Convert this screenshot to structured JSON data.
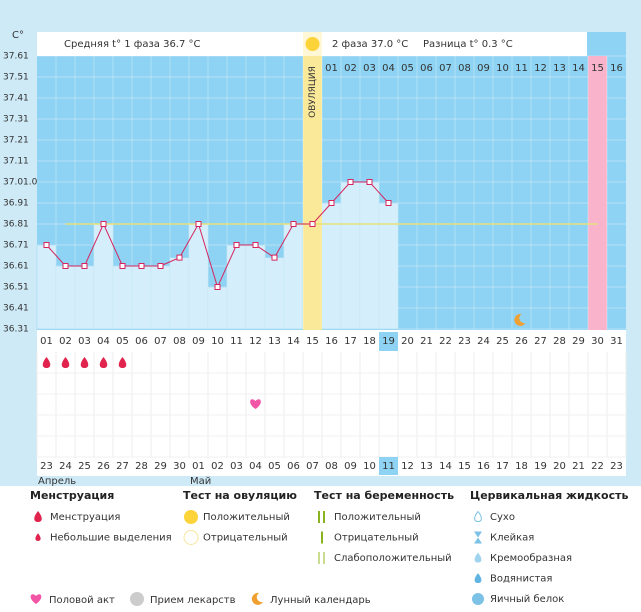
{
  "chart_data": {
    "type": "line",
    "axis_label": "C°",
    "header": {
      "phase1": "Средняя t° 1 фаза 36.7 °C",
      "ovulation": "ОВУЛЯЦИЯ",
      "phase2": "2 фаза 37.0 °C",
      "difference": "Разница t° 0.3 °C"
    },
    "categories": [
      "01",
      "02",
      "03",
      "04",
      "05",
      "06",
      "07",
      "08",
      "09",
      "10",
      "11",
      "12",
      "13",
      "14",
      "15",
      "16",
      "17",
      "18",
      "19",
      "20",
      "21",
      "22",
      "23",
      "24",
      "25",
      "26",
      "27",
      "28",
      "29",
      "30",
      "31"
    ],
    "values": [
      36.7,
      36.6,
      36.6,
      36.8,
      36.6,
      36.6,
      36.6,
      36.64,
      36.8,
      36.5,
      36.7,
      36.7,
      36.64,
      36.8,
      36.8,
      36.9,
      37.0,
      37.0,
      36.9,
      null,
      null,
      null,
      null,
      null,
      null,
      null,
      null,
      null,
      null,
      null,
      null
    ],
    "line_color": "#d6245e",
    "coverline": 36.8,
    "ylim": [
      36.3,
      37.6
    ],
    "yticks": [
      {
        "value": 37.6,
        "label": "37.61"
      },
      {
        "value": 37.5,
        "label": "37.51"
      },
      {
        "value": 37.4,
        "label": "37.41"
      },
      {
        "value": 37.3,
        "label": "37.31"
      },
      {
        "value": 37.2,
        "label": "37.21"
      },
      {
        "value": 37.1,
        "label": "37.11"
      },
      {
        "value": 37.0,
        "label": "37.01.0"
      },
      {
        "value": 36.9,
        "label": "36.91"
      },
      {
        "value": 36.8,
        "label": "36.81"
      },
      {
        "value": 36.7,
        "label": "36.71"
      },
      {
        "value": 36.6,
        "label": "36.61"
      },
      {
        "value": 36.5,
        "label": "36.51"
      },
      {
        "value": 36.4,
        "label": "36.41"
      },
      {
        "value": 36.3,
        "label": "36.31"
      }
    ],
    "grid": true,
    "phase2_days": [
      "01",
      "02",
      "03",
      "04",
      "05",
      "06",
      "07",
      "08",
      "09",
      "10",
      "11",
      "12",
      "13",
      "14",
      "15",
      "16"
    ],
    "ovulation_day": "15",
    "period_day": "30",
    "today": "19",
    "moon_day": "26",
    "menstruation_days": [
      "01",
      "02",
      "03",
      "04",
      "05"
    ],
    "intercourse_days": [
      "12"
    ],
    "dates": [
      "23",
      "24",
      "25",
      "26",
      "27",
      "28",
      "29",
      "30",
      "01",
      "02",
      "03",
      "04",
      "05",
      "06",
      "07",
      "08",
      "09",
      "10",
      "11",
      "12",
      "13",
      "14",
      "15",
      "16",
      "17",
      "18",
      "19",
      "20",
      "21",
      "22",
      "23"
    ],
    "weekend": [
      false,
      true,
      true,
      true,
      true,
      false,
      false,
      false,
      true,
      true,
      false,
      false,
      false,
      false,
      false,
      true,
      true,
      false,
      false,
      false,
      false,
      false,
      true,
      true,
      false,
      false,
      false,
      false,
      false,
      true,
      true
    ],
    "months": [
      {
        "label": "Апрель",
        "day": "23"
      },
      {
        "label": "Май",
        "day": "01"
      }
    ]
  },
  "legend": {
    "sections": [
      {
        "title": "Менструация",
        "items": [
          "Менструация",
          "Небольшие выделения"
        ]
      },
      {
        "title": "Тест на овуляцию",
        "items": [
          "Положительный",
          "Отрицательный"
        ]
      },
      {
        "title": "Тест на беременность",
        "items": [
          "Положительный",
          "Отрицательный",
          "Слабоположительный"
        ]
      },
      {
        "title": "Цервикальная жидкость",
        "items": [
          "Сухо",
          "Клейкая",
          "Кремообразная",
          "Водянистая",
          "Яичный белок"
        ]
      }
    ],
    "other": [
      "Половой акт",
      "Прием лекарств",
      "Лунный календарь"
    ]
  }
}
